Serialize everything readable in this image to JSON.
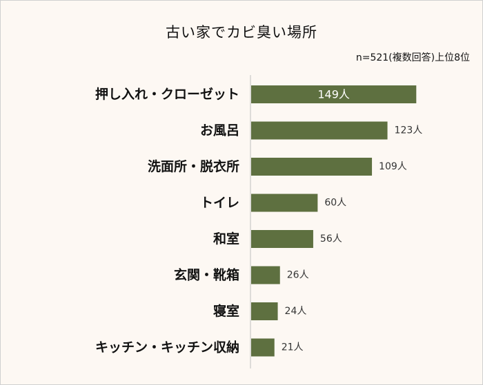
{
  "chart_data": {
    "type": "bar",
    "orientation": "horizontal",
    "title": "古い家でカビ臭い場所",
    "subtitle": "n=521(複数回答)上位8位",
    "categories": [
      "押し入れ・クローゼット",
      "お風呂",
      "洗面所・脱衣所",
      "トイレ",
      "和室",
      "玄関・靴箱",
      "寝室",
      "キッチン・キッチン収納"
    ],
    "values": [
      149,
      123,
      109,
      60,
      56,
      26,
      24,
      21
    ],
    "value_labels": [
      "149人",
      "123人",
      "109人",
      "60人",
      "56人",
      "26人",
      "24人",
      "21人"
    ],
    "unit": "人",
    "xlim": [
      0,
      160
    ],
    "grid": false,
    "legend": "none",
    "bar_color": "#5e7040",
    "background_color": "#fdf8f3"
  }
}
